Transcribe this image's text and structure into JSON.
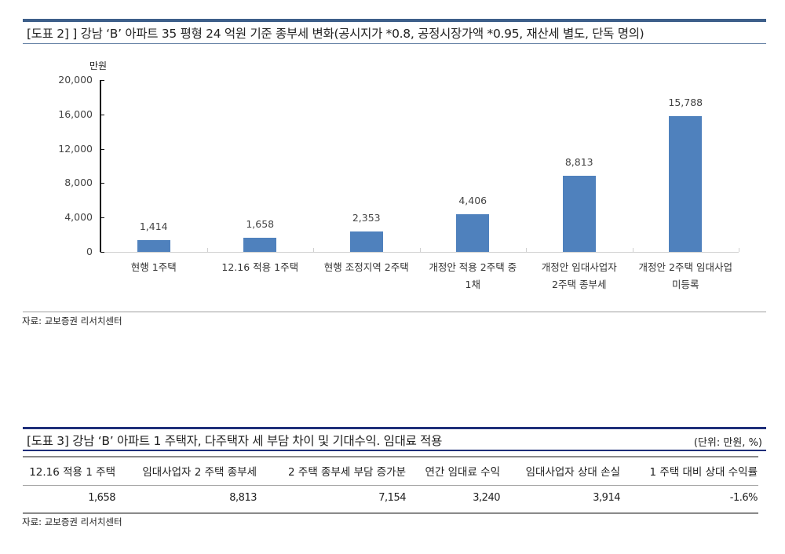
{
  "figure2": {
    "title": "[도표 2] ] 강남 ‘B’ 아파트 35 평형 24 억원 기준 종부세 변화(공시지가 *0.8, 공정시장가액 *0.95, 재산세 별도, 단독 명의)",
    "unit_label": "만원",
    "source": "자료: 교보증권 리서치센터"
  },
  "chart_data": {
    "type": "bar",
    "title": "강남 ‘B’ 아파트 35 평형 24 억원 기준 종부세 변화(공시지가 *0.8, 공정시장가액 *0.95, 재산세 별도, 단독 명의)",
    "xlabel": "",
    "ylabel": "만원",
    "ylim": [
      0,
      20000
    ],
    "yticks": [
      "0",
      "4,000",
      "8,000",
      "12,000",
      "16,000",
      "20,000"
    ],
    "grid": false,
    "legend": null,
    "categories": [
      "현행 1주택",
      "12.16 적용 1주택",
      "현행 조정지역 2주택",
      "개정안 적용 2주택 중 1채",
      "개정안 임대사업자 2주택 종부세",
      "개정안 2주택 임대사업 미등록"
    ],
    "category_lines": [
      [
        "현행 1주택"
      ],
      [
        "12.16 적용 1주택"
      ],
      [
        "현행 조정지역 2주택"
      ],
      [
        "개정안 적용 2주택 중",
        "1채"
      ],
      [
        "개정안 임대사업자",
        "2주택 종부세"
      ],
      [
        "개정안 2주택 임대사업",
        "미등록"
      ]
    ],
    "values": [
      1414,
      1658,
      2353,
      4406,
      8813,
      15788
    ],
    "value_labels": [
      "1,414",
      "1,658",
      "2,353",
      "4,406",
      "8,813",
      "15,788"
    ],
    "bar_color": "#4f81bd"
  },
  "table3": {
    "title": "[도표 3] 강남 ‘B’ 아파트 1 주택자, 다주택자 세 부담 차이 및 기대수익. 임대료 적용",
    "unit": "(단위: 만원, %)",
    "headers": [
      "12.16 적용 1 주택",
      "임대사업자 2 주택 종부세",
      "2 주택 종부세 부담 증가분",
      "연간 임대료 수익",
      "임대사업자 상대 손실",
      "1 주택 대비 상대 수익률"
    ],
    "rows": [
      [
        "1,658",
        "8,813",
        "7,154",
        "3,240",
        "3,914",
        "-1.6%"
      ]
    ],
    "source": "자료: 교보증권 리서치센터"
  }
}
